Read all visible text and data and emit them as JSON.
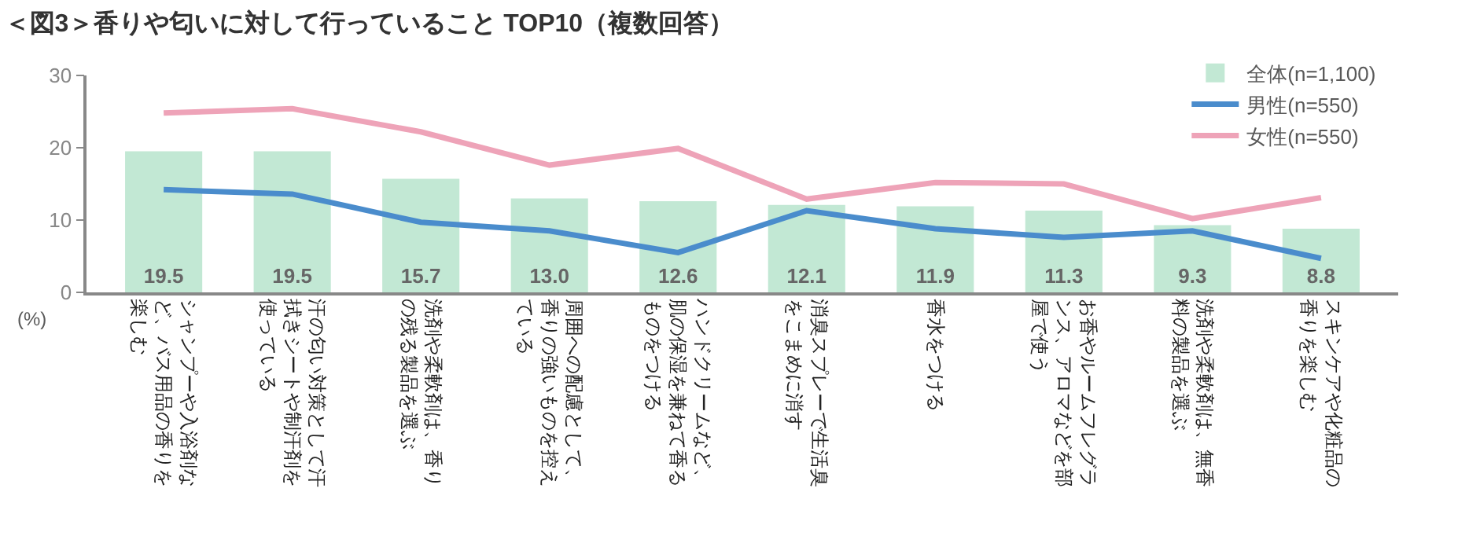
{
  "chart_data": {
    "type": "bar",
    "title": "＜図3＞香りや匂いに対して行っていること TOP10（複数回答）",
    "ylabel": "(%)",
    "categories": [
      "シャンプーや入浴剤など、バス用品の香りを楽しむ",
      "汗の匂い対策として汗拭きシートや制汗剤を使っている",
      "洗剤や柔軟剤は、香りの残る製品を選ぶ",
      "周囲への配慮として、香りの強いものを控えている",
      "ハンドクリームなど、肌の保湿を兼ねて香るものをつける",
      "消臭スプレーで生活臭をこまめに消す",
      "香水をつける",
      "お香やルームフレグランス、アロマなどを部屋で使う",
      "洗剤や柔軟剤は、無香料の製品を選ぶ",
      "スキンケアや化粧品の香りを楽しむ"
    ],
    "series": [
      {
        "name": "全体(n=1,100)",
        "color": "#c2e8d4",
        "values": [
          19.5,
          19.5,
          15.7,
          13.0,
          12.6,
          12.1,
          11.9,
          11.3,
          9.3,
          8.8
        ],
        "value_labels": [
          "19.5",
          "19.5",
          "15.7",
          "13.0",
          "12.6",
          "12.1",
          "11.9",
          "11.3",
          "9.3",
          "8.8"
        ]
      },
      {
        "name": "男性(n=550)",
        "type": "line",
        "color": "#4a8ccc",
        "values": [
          14.2,
          13.6,
          9.7,
          8.5,
          5.5,
          11.3,
          8.8,
          7.6,
          8.5,
          4.7
        ]
      },
      {
        "name": "女性(n=550)",
        "type": "line",
        "color": "#eea3b8",
        "values": [
          24.8,
          25.4,
          22.2,
          17.6,
          19.9,
          12.9,
          15.2,
          15.0,
          10.2,
          13.1
        ]
      }
    ],
    "ylim": [
      0,
      30
    ],
    "yticks": [
      0,
      10,
      20,
      30
    ],
    "grid": false,
    "legend": "top right",
    "marker": "none",
    "line_style": "solid"
  }
}
